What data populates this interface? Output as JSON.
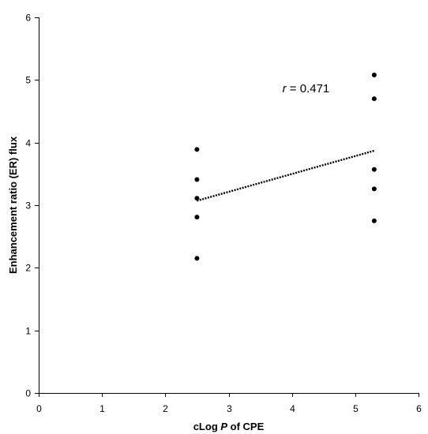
{
  "chart_data": {
    "type": "scatter",
    "title": "",
    "xlabel_parts": [
      "cLog ",
      "P",
      " of CPE"
    ],
    "ylabel": "Enhancement ratio (ER) flux",
    "xlim": [
      0,
      6
    ],
    "ylim": [
      0,
      6
    ],
    "xticks": [
      0,
      1,
      2,
      3,
      4,
      5,
      6
    ],
    "yticks": [
      0,
      1,
      2,
      3,
      4,
      5,
      6
    ],
    "grid": false,
    "legend": "none",
    "series": [
      {
        "points": [
          {
            "x": 2.5,
            "y": 3.89
          },
          {
            "x": 2.5,
            "y": 3.41
          },
          {
            "x": 2.5,
            "y": 3.11
          },
          {
            "x": 2.5,
            "y": 2.81
          },
          {
            "x": 2.5,
            "y": 2.15
          },
          {
            "x": 5.3,
            "y": 5.08
          },
          {
            "x": 5.3,
            "y": 4.7
          },
          {
            "x": 5.3,
            "y": 3.57
          },
          {
            "x": 5.3,
            "y": 3.26
          },
          {
            "x": 5.3,
            "y": 2.75
          }
        ],
        "color": "#000000"
      }
    ],
    "trendline": {
      "style": "dotted",
      "start": {
        "x": 2.5,
        "y": 3.07
      },
      "end": {
        "x": 5.3,
        "y": 3.87
      }
    },
    "annotation": {
      "r_symbol": "r",
      "r_text": " = 0.471",
      "x": 3.85,
      "y": 4.8
    }
  }
}
